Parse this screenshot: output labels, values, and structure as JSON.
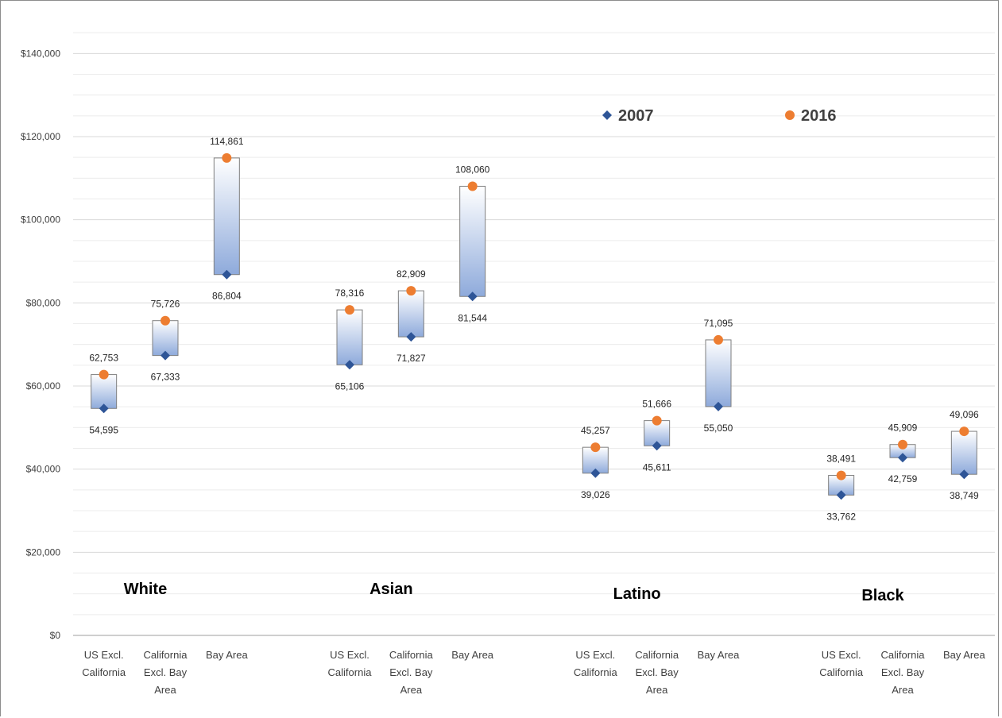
{
  "chart_data": {
    "type": "range",
    "ylim": [
      0,
      150000
    ],
    "yticks": [
      {
        "value": 0,
        "label": "$0"
      },
      {
        "value": 20000,
        "label": "$20,000"
      },
      {
        "value": 40000,
        "label": "$40,000"
      },
      {
        "value": 60000,
        "label": "$60,000"
      },
      {
        "value": 80000,
        "label": "$80,000"
      },
      {
        "value": 100000,
        "label": "$100,000"
      },
      {
        "value": 120000,
        "label": "$120,000"
      },
      {
        "value": 140000,
        "label": "$140,000"
      }
    ],
    "grid": true,
    "legend": {
      "position": "top-right",
      "items": [
        {
          "name": "2007",
          "marker": "diamond",
          "color": "#2e5597"
        },
        {
          "name": "2016",
          "marker": "circle",
          "color": "#ed7d31"
        }
      ]
    },
    "groups": [
      {
        "name": "White",
        "categories": [
          {
            "label": [
              "US Excl.",
              "California"
            ],
            "v2007": 54595,
            "v2016": 62753,
            "l2007": "54,595",
            "l2016": "62,753"
          },
          {
            "label": [
              "California",
              "Excl. Bay",
              "Area"
            ],
            "v2007": 67333,
            "v2016": 75726,
            "l2007": "67,333",
            "l2016": "75,726"
          },
          {
            "label": [
              "Bay Area"
            ],
            "v2007": 86804,
            "v2016": 114861,
            "l2007": "86,804",
            "l2016": "114,861"
          }
        ]
      },
      {
        "name": "Asian",
        "categories": [
          {
            "label": [
              "US Excl.",
              "California"
            ],
            "v2007": 65106,
            "v2016": 78316,
            "l2007": "65,106",
            "l2016": "78,316"
          },
          {
            "label": [
              "California",
              "Excl. Bay",
              "Area"
            ],
            "v2007": 71827,
            "v2016": 82909,
            "l2007": "71,827",
            "l2016": "82,909"
          },
          {
            "label": [
              "Bay Area"
            ],
            "v2007": 81544,
            "v2016": 108060,
            "l2007": "81,544",
            "l2016": "108,060"
          }
        ]
      },
      {
        "name": "Latino",
        "categories": [
          {
            "label": [
              "US Excl.",
              "California"
            ],
            "v2007": 39026,
            "v2016": 45257,
            "l2007": "39,026",
            "l2016": "45,257"
          },
          {
            "label": [
              "California",
              "Excl. Bay",
              "Area"
            ],
            "v2007": 45611,
            "v2016": 51666,
            "l2007": "45,611",
            "l2016": "51,666"
          },
          {
            "label": [
              "Bay Area"
            ],
            "v2007": 55050,
            "v2016": 71095,
            "l2007": "55,050",
            "l2016": "71,095"
          }
        ]
      },
      {
        "name": "Black",
        "categories": [
          {
            "label": [
              "US Excl.",
              "California"
            ],
            "v2007": 33762,
            "v2016": 38491,
            "l2007": "33,762",
            "l2016": "38,491"
          },
          {
            "label": [
              "California",
              "Excl. Bay",
              "Area"
            ],
            "v2007": 42759,
            "v2016": 45909,
            "l2007": "42,759",
            "l2016": "45,909"
          },
          {
            "label": [
              "Bay Area"
            ],
            "v2007": 38749,
            "v2016": 49096,
            "l2007": "38,749",
            "l2016": "49,096"
          }
        ]
      }
    ]
  }
}
